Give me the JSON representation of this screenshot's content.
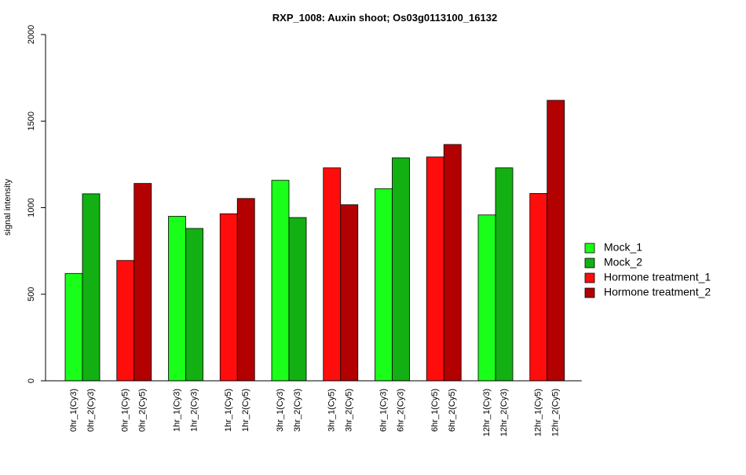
{
  "chart_data": {
    "type": "bar",
    "title": "RXP_1008: Auxin shoot; Os03g0113100_16132",
    "ylabel": "signal intensity",
    "xlabel": "",
    "ylim": [
      0,
      2000
    ],
    "yticks": [
      0,
      500,
      1000,
      1500,
      2000
    ],
    "legend_position": "right",
    "series": [
      {
        "name": "Mock_1",
        "color": "#19ff19"
      },
      {
        "name": "Mock_2",
        "color": "#12b012"
      },
      {
        "name": "Hormone treatment_1",
        "color": "#ff0d0d"
      },
      {
        "name": "Hormone treatment_2",
        "color": "#b30000"
      }
    ],
    "groups": [
      {
        "bars": [
          {
            "label": "0hr_1(Cy3)",
            "value": 620,
            "series": 0
          },
          {
            "label": "0hr_2(Cy3)",
            "value": 1080,
            "series": 1
          }
        ]
      },
      {
        "bars": [
          {
            "label": "0hr_1(Cy5)",
            "value": 695,
            "series": 2
          },
          {
            "label": "0hr_2(Cy5)",
            "value": 1140,
            "series": 3
          }
        ]
      },
      {
        "bars": [
          {
            "label": "1hr_1(Cy3)",
            "value": 950,
            "series": 0
          },
          {
            "label": "1hr_2(Cy3)",
            "value": 880,
            "series": 1
          }
        ]
      },
      {
        "bars": [
          {
            "label": "1hr_1(Cy5)",
            "value": 965,
            "series": 2
          },
          {
            "label": "1hr_2(Cy5)",
            "value": 1053,
            "series": 3
          }
        ]
      },
      {
        "bars": [
          {
            "label": "3hr_1(Cy3)",
            "value": 1158,
            "series": 0
          },
          {
            "label": "3hr_2(Cy3)",
            "value": 943,
            "series": 1
          }
        ]
      },
      {
        "bars": [
          {
            "label": "3hr_1(Cy5)",
            "value": 1230,
            "series": 2
          },
          {
            "label": "3hr_2(Cy5)",
            "value": 1017,
            "series": 3
          }
        ]
      },
      {
        "bars": [
          {
            "label": "6hr_1(Cy3)",
            "value": 1110,
            "series": 0
          },
          {
            "label": "6hr_2(Cy3)",
            "value": 1288,
            "series": 1
          }
        ]
      },
      {
        "bars": [
          {
            "label": "6hr_1(Cy5)",
            "value": 1293,
            "series": 2
          },
          {
            "label": "6hr_2(Cy5)",
            "value": 1365,
            "series": 3
          }
        ]
      },
      {
        "bars": [
          {
            "label": "12hr_1(Cy3)",
            "value": 958,
            "series": 0
          },
          {
            "label": "12hr_2(Cy3)",
            "value": 1230,
            "series": 1
          }
        ]
      },
      {
        "bars": [
          {
            "label": "12hr_1(Cy5)",
            "value": 1082,
            "series": 2
          },
          {
            "label": "12hr_2(Cy5)",
            "value": 1620,
            "series": 3
          }
        ]
      }
    ]
  }
}
